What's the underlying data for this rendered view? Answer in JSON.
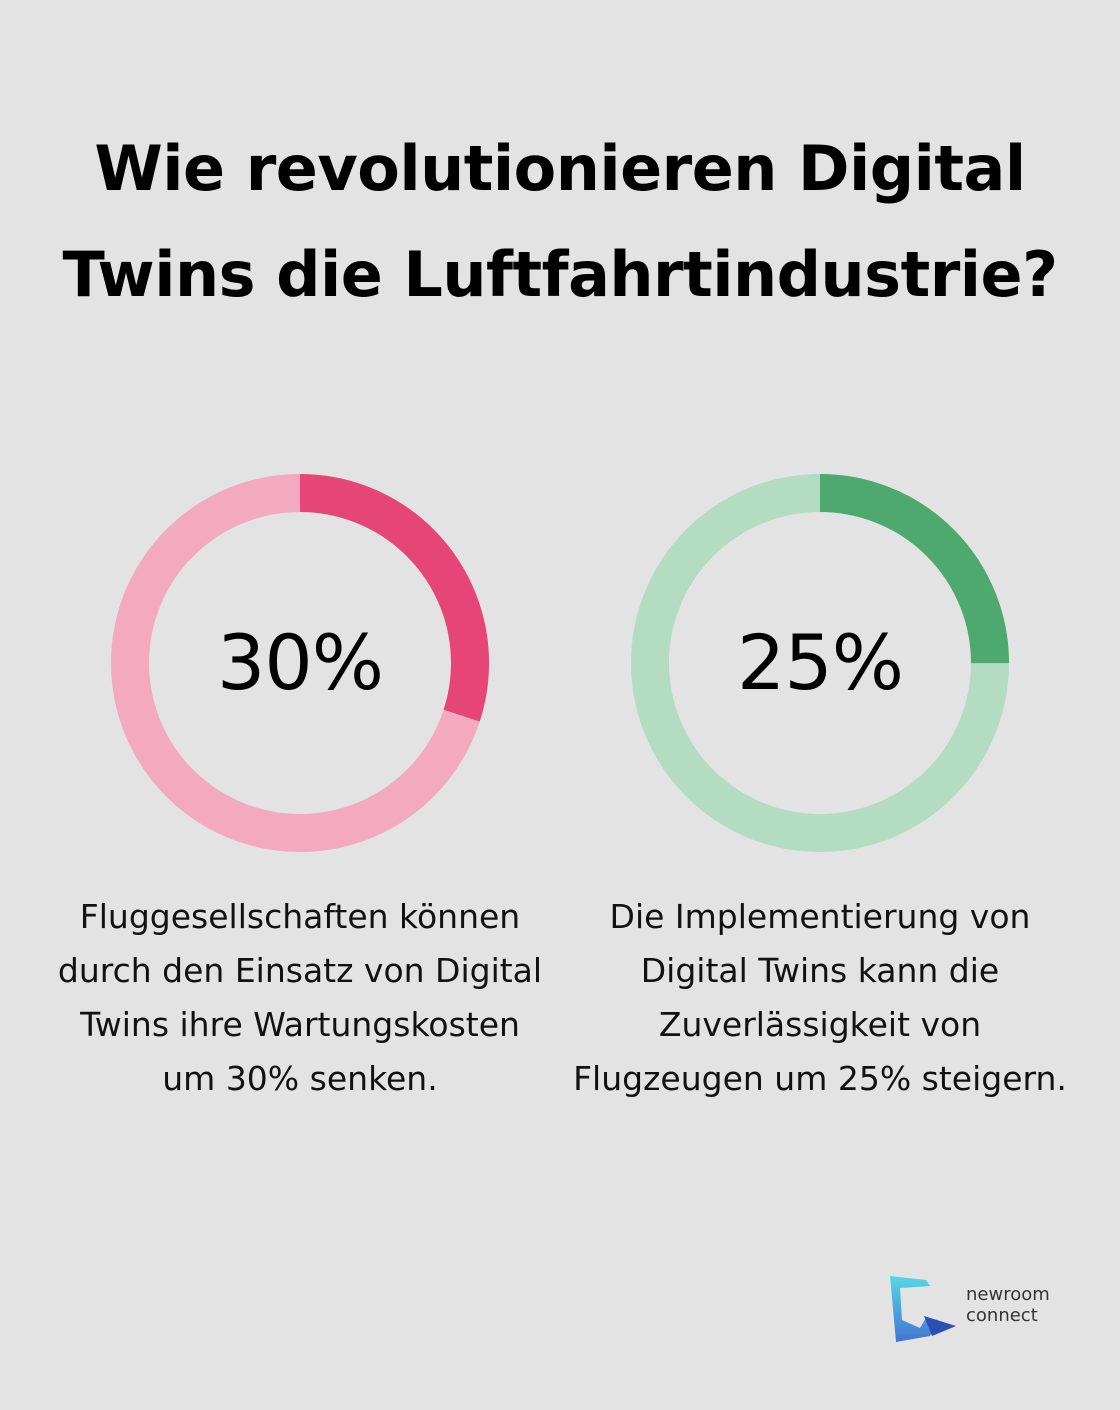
{
  "title": "Wie revolutionieren Digital Twins die Luftfahrtindustrie?",
  "chart_data": [
    {
      "type": "pie",
      "value": 30,
      "total": 100,
      "center_label": "30%",
      "caption": "Fluggesellschaften können durch den Einsatz von Digital Twins ihre Wartungskosten um 30% senken.",
      "colors": {
        "highlight": "#e64677",
        "track": "#f3a9c0"
      }
    },
    {
      "type": "pie",
      "value": 25,
      "total": 100,
      "center_label": "25%",
      "caption": "Die Implementierung von Digital Twins kann die Zuverlässigkeit von Flugzeugen um 25% steigern.",
      "colors": {
        "highlight": "#4ea96e",
        "track": "#b3dcc3"
      }
    }
  ],
  "brand": {
    "line1": "newroom",
    "line2": "connect",
    "icon": "newroom-connect-logo-icon"
  },
  "colors": {
    "background": "#e2e3e2",
    "text": "#000000"
  }
}
